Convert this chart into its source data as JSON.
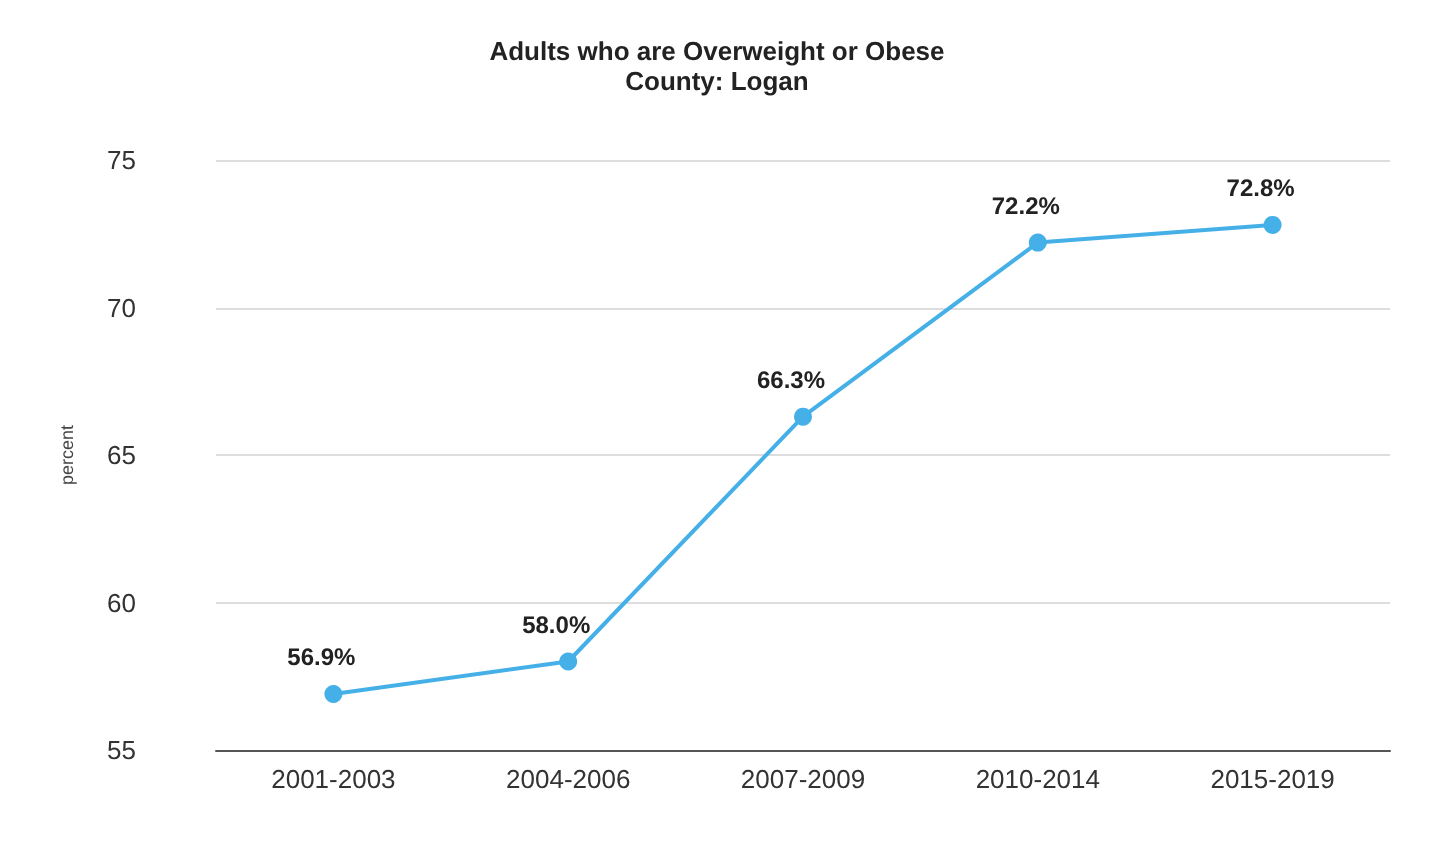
{
  "chart_data": {
    "type": "line",
    "title": "Adults who are Overweight or Obese",
    "subtitle": "County: Logan",
    "ylabel": "percent",
    "categories": [
      "2001-2003",
      "2004-2006",
      "2007-2009",
      "2010-2014",
      "2015-2019"
    ],
    "series": [
      {
        "color": "#45b0e8",
        "values": [
          56.9,
          58.0,
          66.3,
          72.2,
          72.8
        ],
        "value_labels": [
          "56.9%",
          "58.0%",
          "66.3%",
          "72.2%",
          "72.8%"
        ]
      }
    ],
    "ylim": [
      55,
      75
    ],
    "yticks": [
      55,
      60,
      65,
      70,
      75
    ],
    "grid": "y",
    "marker": "circle",
    "line_style": "solid"
  }
}
